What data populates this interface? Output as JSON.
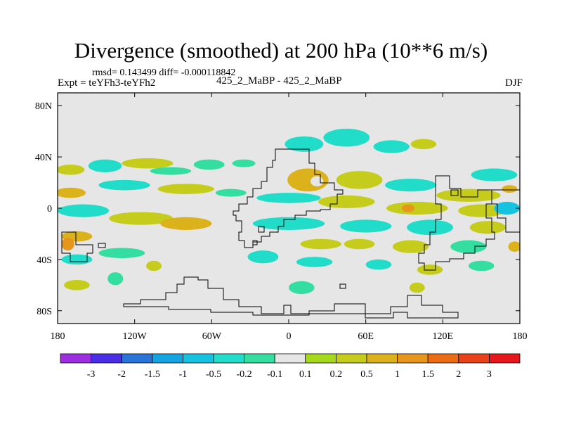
{
  "chart_data": {
    "type": "heatmap",
    "title": "Divergence (smoothed) at 200 hPa (10**6 m/s)",
    "stats_text": "rmsd= 0.143499  diff= -0.000118842",
    "experiment_label": "Expt = teYFh3-teYFh2",
    "case_label": "425_2_MaBP - 425_2_MaBP",
    "season": "DJF",
    "x_range": [
      -180,
      180
    ],
    "y_range": [
      -90,
      90
    ],
    "x_ticks": [
      {
        "value": -180,
        "label": "180"
      },
      {
        "value": -120,
        "label": "120W"
      },
      {
        "value": -60,
        "label": "60W"
      },
      {
        "value": 0,
        "label": "0"
      },
      {
        "value": 60,
        "label": "60E"
      },
      {
        "value": 120,
        "label": "120E"
      },
      {
        "value": 180,
        "label": "180"
      }
    ],
    "y_ticks": [
      {
        "value": 80,
        "label": "80N"
      },
      {
        "value": 40,
        "label": "40N"
      },
      {
        "value": 0,
        "label": "0"
      },
      {
        "value": -40,
        "label": "40S"
      },
      {
        "value": -80,
        "label": "80S"
      }
    ],
    "colorbar": {
      "levels": [
        "-3",
        "-2",
        "-1.5",
        "-1",
        "-0.5",
        "-0.2",
        "-0.1",
        "0.1",
        "0.2",
        "0.5",
        "1",
        "1.5",
        "2",
        "3"
      ],
      "colors": [
        "#9b2fe0",
        "#4a2ee5",
        "#2a74d8",
        "#16a3e2",
        "#15c2df",
        "#20dcc8",
        "#33dea0",
        "#e6e6e6",
        "#a6d81b",
        "#c6cc1c",
        "#dcb21c",
        "#e6961a",
        "#ea6d16",
        "#e8421a",
        "#e6171c"
      ]
    },
    "field_blobs": [
      {
        "lon": -170,
        "lat": 30,
        "rx": 11,
        "ry": 4,
        "value": 0.2
      },
      {
        "lon": -143,
        "lat": 33,
        "rx": 13,
        "ry": 5,
        "value": -0.3
      },
      {
        "lon": -110,
        "lat": 35,
        "rx": 20,
        "ry": 4,
        "value": 0.2
      },
      {
        "lon": -92,
        "lat": 29,
        "rx": 16,
        "ry": 3,
        "value": -0.2
      },
      {
        "lon": -62,
        "lat": 34,
        "rx": 12,
        "ry": 4,
        "value": -0.2
      },
      {
        "lon": -35,
        "lat": 35,
        "rx": 9,
        "ry": 3,
        "value": -0.2
      },
      {
        "lon": -170,
        "lat": 12,
        "rx": 12,
        "ry": 4,
        "value": 0.5
      },
      {
        "lon": -128,
        "lat": 18,
        "rx": 20,
        "ry": 4,
        "value": -0.3
      },
      {
        "lon": -80,
        "lat": 15,
        "rx": 22,
        "ry": 4,
        "value": 0.3
      },
      {
        "lon": -45,
        "lat": 12,
        "rx": 12,
        "ry": 3,
        "value": -0.2
      },
      {
        "lon": -160,
        "lat": -2,
        "rx": 20,
        "ry": 5,
        "value": -0.4
      },
      {
        "lon": -115,
        "lat": -8,
        "rx": 25,
        "ry": 5,
        "value": 0.4
      },
      {
        "lon": -80,
        "lat": -12,
        "rx": 20,
        "ry": 5,
        "value": 0.5
      },
      {
        "lon": -165,
        "lat": -22,
        "rx": 12,
        "ry": 4,
        "value": 0.5
      },
      {
        "lon": -172,
        "lat": -28,
        "rx": 5,
        "ry": 5,
        "value": 1.2
      },
      {
        "lon": -130,
        "lat": -35,
        "rx": 18,
        "ry": 4,
        "value": -0.2
      },
      {
        "lon": -165,
        "lat": -40,
        "rx": 12,
        "ry": 4,
        "value": -0.3
      },
      {
        "lon": -165,
        "lat": -60,
        "rx": 10,
        "ry": 4,
        "value": 0.2
      },
      {
        "lon": -135,
        "lat": -55,
        "rx": 6,
        "ry": 5,
        "value": -0.2
      },
      {
        "lon": -105,
        "lat": -45,
        "rx": 6,
        "ry": 4,
        "value": 0.2
      },
      {
        "lon": 12,
        "lat": 50,
        "rx": 15,
        "ry": 6,
        "value": -0.3
      },
      {
        "lon": 45,
        "lat": 55,
        "rx": 18,
        "ry": 7,
        "value": -0.3
      },
      {
        "lon": 80,
        "lat": 48,
        "rx": 14,
        "ry": 5,
        "value": -0.3
      },
      {
        "lon": 105,
        "lat": 50,
        "rx": 10,
        "ry": 4,
        "value": 0.2
      },
      {
        "lon": 15,
        "lat": 22,
        "rx": 16,
        "ry": 9,
        "value": 0.5
      },
      {
        "lon": 22,
        "lat": 21,
        "rx": 5,
        "ry": 4,
        "value": 0.0
      },
      {
        "lon": 55,
        "lat": 22,
        "rx": 18,
        "ry": 7,
        "value": 0.4
      },
      {
        "lon": 95,
        "lat": 18,
        "rx": 20,
        "ry": 5,
        "value": -0.3
      },
      {
        "lon": 160,
        "lat": 26,
        "rx": 18,
        "ry": 5,
        "value": -0.3
      },
      {
        "lon": 140,
        "lat": 10,
        "rx": 25,
        "ry": 5,
        "value": 0.3
      },
      {
        "lon": 172,
        "lat": 15,
        "rx": 6,
        "ry": 3,
        "value": 0.8
      },
      {
        "lon": 0,
        "lat": 8,
        "rx": 25,
        "ry": 4,
        "value": -0.3
      },
      {
        "lon": 45,
        "lat": 5,
        "rx": 22,
        "ry": 5,
        "value": 0.4
      },
      {
        "lon": 100,
        "lat": 0,
        "rx": 24,
        "ry": 5,
        "value": 0.4
      },
      {
        "lon": 93,
        "lat": 0,
        "rx": 5,
        "ry": 3,
        "value": 1.1
      },
      {
        "lon": 150,
        "lat": -2,
        "rx": 18,
        "ry": 5,
        "value": 0.3
      },
      {
        "lon": 170,
        "lat": 0,
        "rx": 10,
        "ry": 5,
        "value": -0.6
      },
      {
        "lon": 0,
        "lat": -12,
        "rx": 28,
        "ry": 5,
        "value": -0.4
      },
      {
        "lon": 60,
        "lat": -14,
        "rx": 20,
        "ry": 5,
        "value": -0.4
      },
      {
        "lon": 110,
        "lat": -15,
        "rx": 18,
        "ry": 6,
        "value": -0.3
      },
      {
        "lon": 155,
        "lat": -15,
        "rx": 14,
        "ry": 5,
        "value": 0.3
      },
      {
        "lon": 176,
        "lat": -30,
        "rx": 5,
        "ry": 4,
        "value": 0.5
      },
      {
        "lon": 25,
        "lat": -28,
        "rx": 16,
        "ry": 4,
        "value": 0.3
      },
      {
        "lon": 55,
        "lat": -28,
        "rx": 12,
        "ry": 4,
        "value": 0.3
      },
      {
        "lon": 95,
        "lat": -30,
        "rx": 14,
        "ry": 5,
        "value": 0.3
      },
      {
        "lon": 140,
        "lat": -30,
        "rx": 14,
        "ry": 5,
        "value": -0.2
      },
      {
        "lon": -20,
        "lat": -38,
        "rx": 12,
        "ry": 5,
        "value": -0.3
      },
      {
        "lon": 20,
        "lat": -42,
        "rx": 14,
        "ry": 4,
        "value": -0.3
      },
      {
        "lon": 70,
        "lat": -44,
        "rx": 10,
        "ry": 4,
        "value": -0.3
      },
      {
        "lon": 110,
        "lat": -48,
        "rx": 10,
        "ry": 4,
        "value": 0.3
      },
      {
        "lon": 150,
        "lat": -45,
        "rx": 10,
        "ry": 4,
        "value": -0.2
      },
      {
        "lon": 10,
        "lat": -62,
        "rx": 10,
        "ry": 5,
        "value": -0.2
      },
      {
        "lon": 100,
        "lat": -62,
        "rx": 6,
        "ry": 4,
        "value": 0.4
      }
    ]
  }
}
